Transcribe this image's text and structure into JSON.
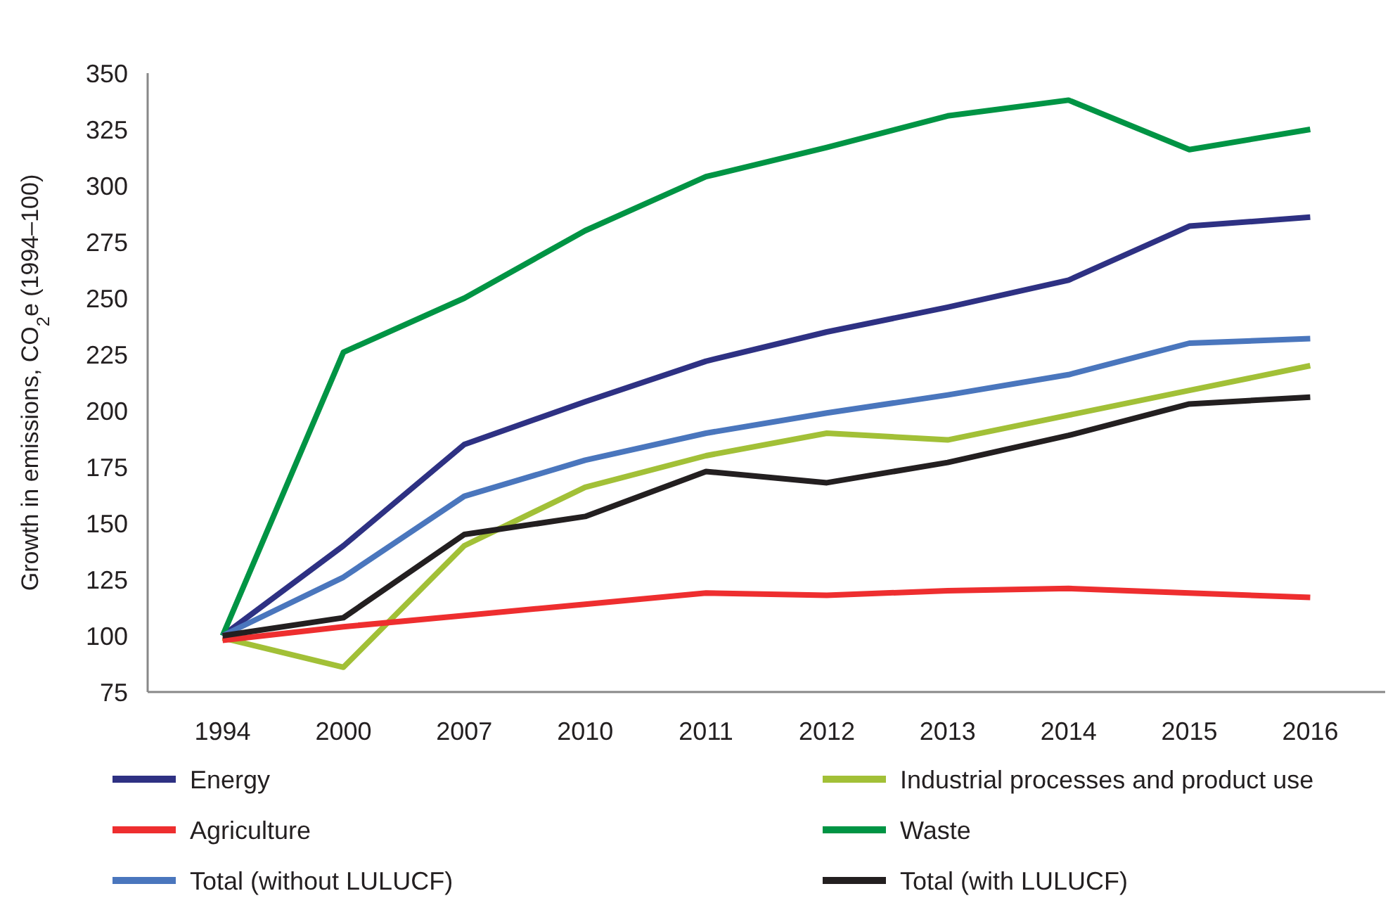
{
  "chart_data": {
    "type": "line",
    "ylabel": "Growth in emissions, CO$_{2}$e (1994–100)",
    "categories": [
      "1994",
      "2000",
      "2007",
      "2010",
      "2011",
      "2012",
      "2013",
      "2014",
      "2015",
      "2016"
    ],
    "ylim": [
      75,
      350
    ],
    "yticks": [
      75,
      100,
      125,
      150,
      175,
      200,
      225,
      250,
      275,
      300,
      325,
      350
    ],
    "grid": false,
    "legend": "bottom",
    "marker": "none",
    "line_style": "solid",
    "series": [
      {
        "name": "Energy",
        "color": "#2e3183",
        "values": [
          100,
          140,
          185,
          204,
          222,
          235,
          246,
          258,
          282,
          286
        ]
      },
      {
        "name": "Industrial processes and product use",
        "color": "#a2c037",
        "values": [
          99,
          86,
          140,
          166,
          180,
          190,
          187,
          198,
          209,
          220
        ]
      },
      {
        "name": "Agriculture",
        "color": "#ee2e2f",
        "values": [
          98,
          104,
          109,
          114,
          119,
          118,
          120,
          121,
          119,
          117
        ]
      },
      {
        "name": "Waste",
        "color": "#009444",
        "values": [
          100,
          226,
          250,
          280,
          304,
          317,
          331,
          338,
          316,
          325
        ]
      },
      {
        "name": "Total (without LULUCF)",
        "color": "#4a76bd",
        "values": [
          100,
          126,
          162,
          178,
          190,
          199,
          207,
          216,
          230,
          232
        ]
      },
      {
        "name": "Total (with LULUCF)",
        "color": "#231f20",
        "values": [
          100,
          108,
          145,
          153,
          173,
          168,
          177,
          189,
          203,
          206
        ]
      }
    ]
  }
}
